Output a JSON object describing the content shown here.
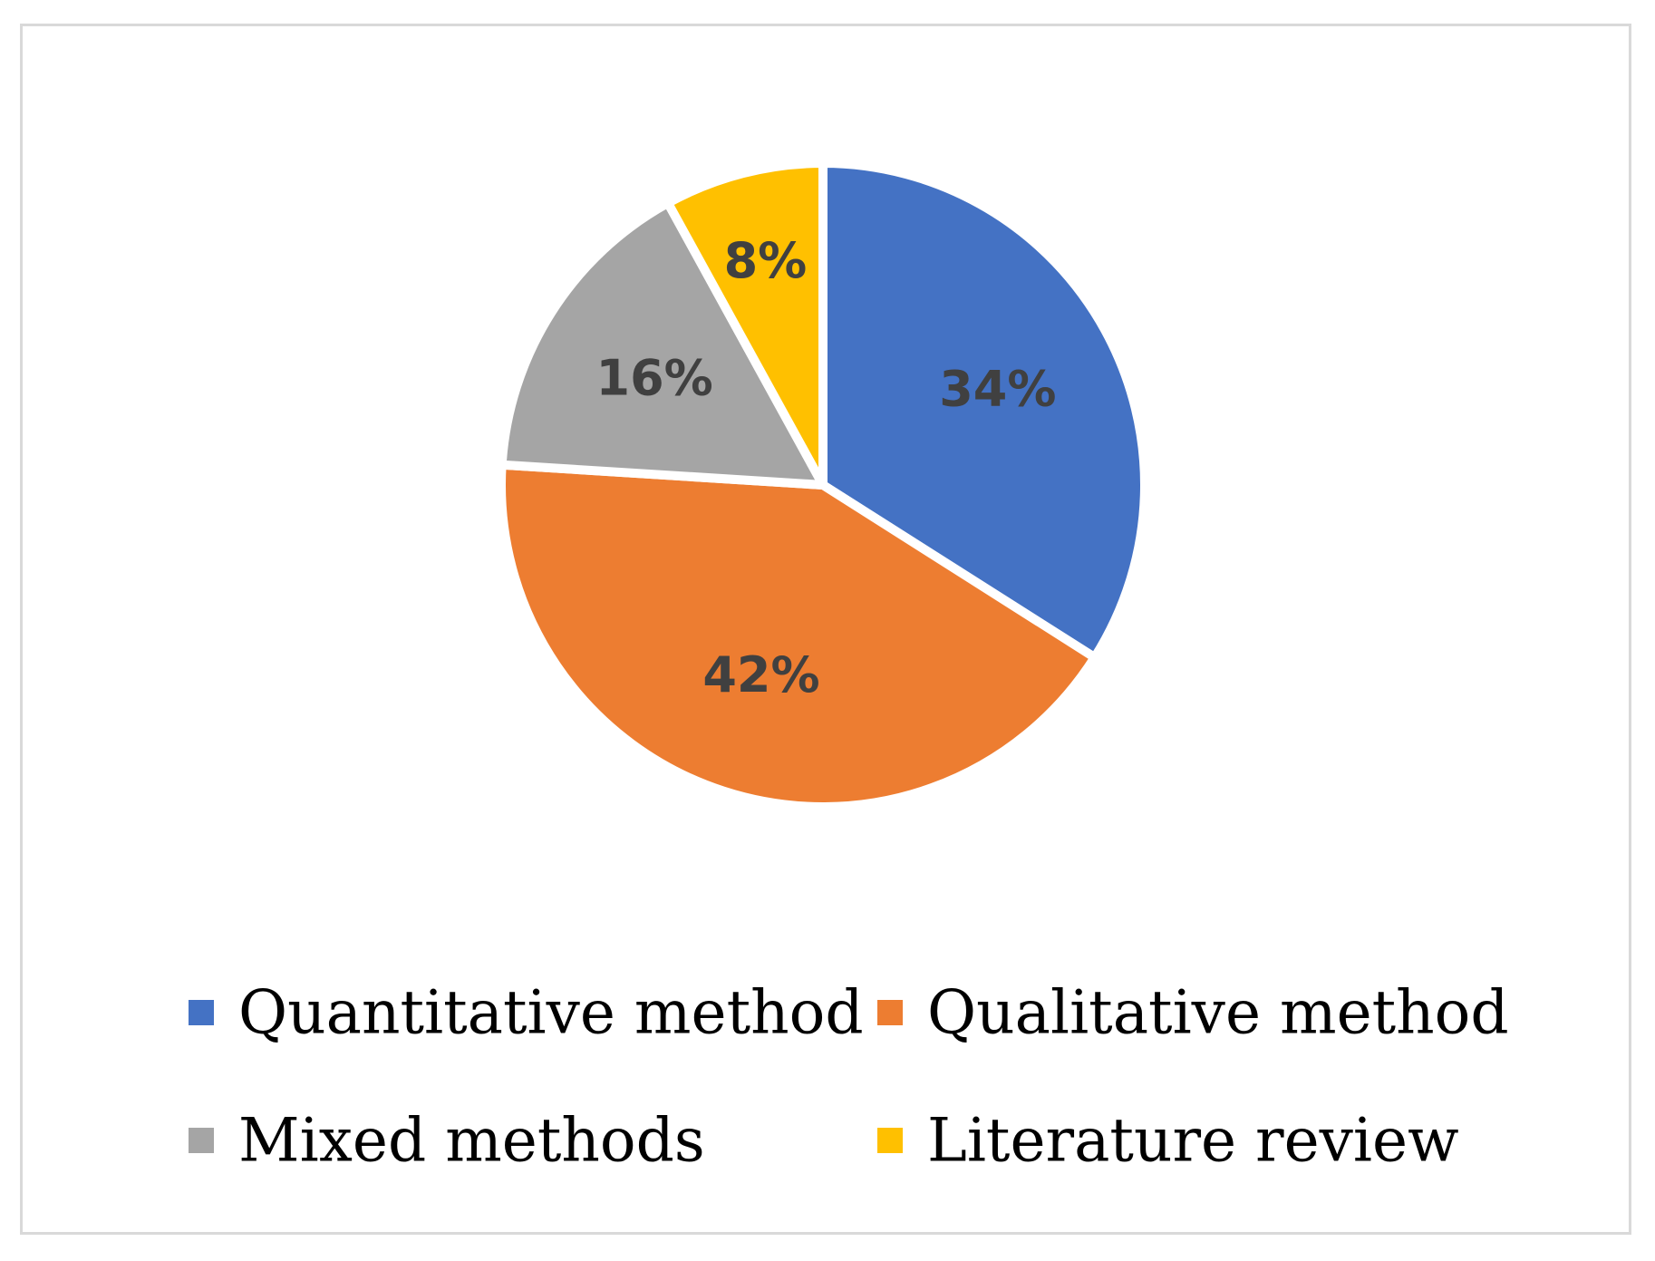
{
  "chart_data": {
    "type": "pie",
    "categories": [
      "Quantitative method",
      "Qualitative method",
      "Mixed methods",
      "Literature review"
    ],
    "values": [
      34,
      42,
      16,
      8
    ],
    "data_labels": [
      "34%",
      "42%",
      "16%",
      "8%"
    ],
    "colors": [
      "#4472c4",
      "#ed7d31",
      "#a5a5a5",
      "#ffc000"
    ],
    "title": "",
    "legend_position": "bottom",
    "start_angle": "12 o'clock, clockwise"
  }
}
